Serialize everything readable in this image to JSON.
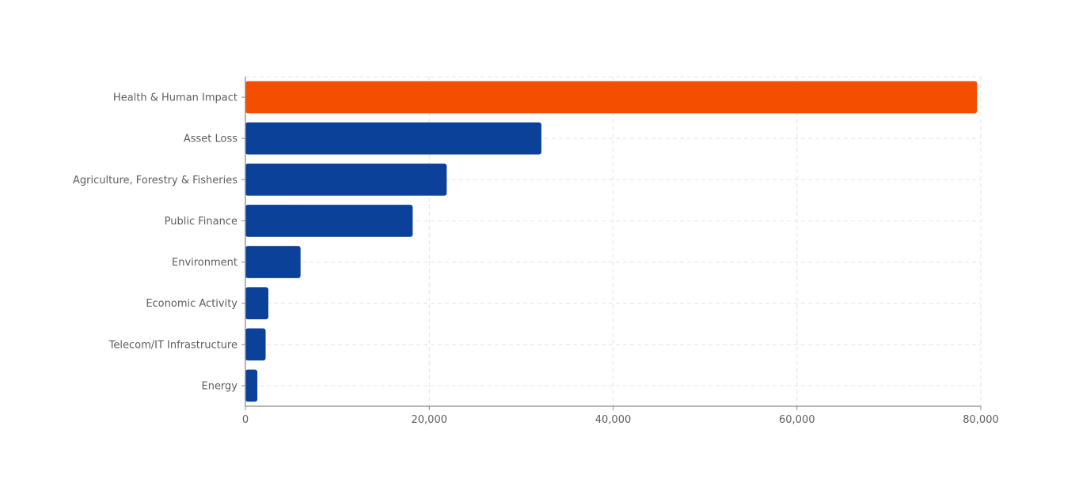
{
  "chart_data": {
    "type": "bar",
    "orientation": "horizontal",
    "categories": [
      "Health & Human Impact",
      "Asset Loss",
      "Agriculture, Forestry & Fisheries",
      "Public Finance",
      "Environment",
      "Economic Activity",
      "Telecom/IT Infrastructure",
      "Energy"
    ],
    "values": [
      79600,
      32200,
      21900,
      18200,
      6000,
      2500,
      2200,
      1300
    ],
    "highlight_index": 0,
    "title": "",
    "xlabel": "",
    "ylabel": "",
    "xlim": [
      0,
      80000
    ],
    "xticks": [
      0,
      20000,
      40000,
      60000,
      80000
    ],
    "xtick_labels": [
      "0",
      "20,000",
      "40,000",
      "60,000",
      "80,000"
    ],
    "grid": true,
    "legend": "none",
    "colors": {
      "highlight": "#f44f00",
      "bar": "#0b4199",
      "grid": "#e4e4e4",
      "axis": "#8a8a8a",
      "text": "#5e5e5e"
    }
  }
}
